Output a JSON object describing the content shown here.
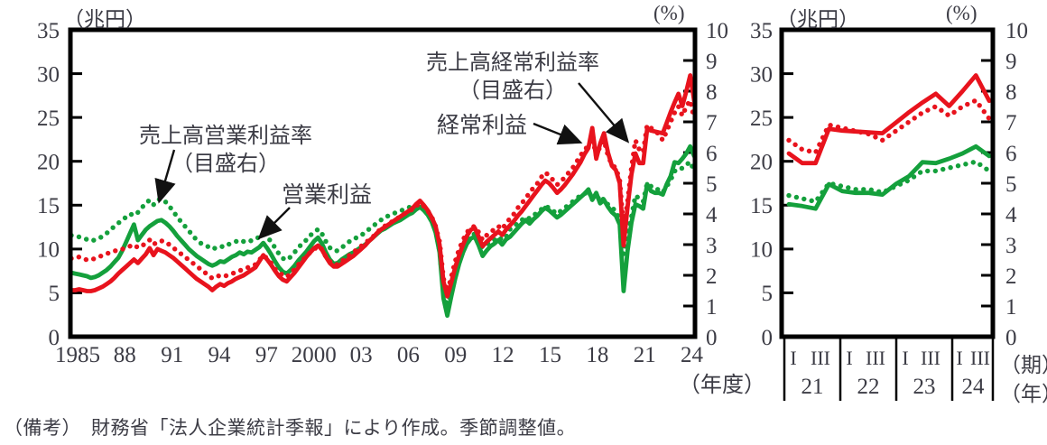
{
  "note": "（備考）　財務省「法人企業統計季報」により作成。季節調整値。",
  "colors": {
    "red": "#e8131d",
    "green": "#14a03c",
    "text": "#3c3c45"
  },
  "chart_data": [
    {
      "type": "line",
      "panel": "annual-main",
      "unit_left": "（兆円）",
      "unit_right": "(%)",
      "xlabel": "（年度）",
      "x_range_fiscal_years": [
        1985,
        2024
      ],
      "x_frequency": "quarterly",
      "ylim_left": [
        0,
        35
      ],
      "yticks_left": [
        0,
        5,
        10,
        15,
        20,
        25,
        30,
        35
      ],
      "ylim_right": [
        0,
        10
      ],
      "yticks_right": [
        0,
        1,
        2,
        3,
        4,
        5,
        6,
        7,
        8,
        9,
        10
      ],
      "x_ticks": [
        {
          "label": "1985",
          "year": 1985
        },
        {
          "label": "88",
          "year": 1988
        },
        {
          "label": "91",
          "year": 1991
        },
        {
          "label": "94",
          "year": 1994
        },
        {
          "label": "97",
          "year": 1997
        },
        {
          "label": "2000",
          "year": 2000
        },
        {
          "label": "03",
          "year": 2003
        },
        {
          "label": "06",
          "year": 2006
        },
        {
          "label": "09",
          "year": 2009
        },
        {
          "label": "12",
          "year": 2012
        },
        {
          "label": "15",
          "year": 2015
        },
        {
          "label": "18",
          "year": 2018
        },
        {
          "label": "21",
          "year": 2021
        },
        {
          "label": "24",
          "year": 2024
        }
      ],
      "annotations": [
        {
          "lines": [
            "売上高営業利益率",
            "（目盛右）"
          ],
          "target": "green dotted series around 1990"
        },
        {
          "lines": [
            "営業利益"
          ],
          "target": "green solid series around 1997"
        },
        {
          "lines": [
            "売上高経常利益率",
            "（目盛右）"
          ],
          "target": "red dotted series around 2021"
        },
        {
          "lines": [
            "経常利益"
          ],
          "target": "red solid series around 2018"
        }
      ],
      "series": [
        {
          "name": "売上高営業利益率（目盛右）",
          "axis": "right",
          "line": "dotted",
          "color": "#14a03c",
          "values": [
            3.3,
            3.27,
            3.25,
            3.2,
            3.17,
            3.12,
            3.15,
            3.2,
            3.27,
            3.37,
            3.47,
            3.6,
            3.7,
            3.8,
            3.9,
            4.0,
            3.95,
            4.05,
            4.2,
            4.35,
            4.45,
            4.3,
            4.45,
            4.5,
            4.4,
            4.25,
            4.1,
            3.9,
            3.75,
            3.6,
            3.45,
            3.3,
            3.15,
            3.05,
            2.98,
            2.93,
            2.85,
            2.9,
            2.95,
            2.92,
            3.0,
            3.05,
            3.1,
            3.15,
            3.1,
            3.15,
            3.12,
            3.18,
            3.25,
            3.35,
            3.25,
            3.1,
            2.9,
            2.7,
            2.55,
            2.5,
            2.6,
            2.75,
            2.9,
            3.05,
            3.15,
            3.3,
            3.4,
            3.5,
            3.35,
            3.1,
            2.9,
            2.8,
            2.8,
            2.9,
            3.0,
            3.1,
            3.15,
            3.25,
            3.3,
            3.4,
            3.5,
            3.6,
            3.7,
            3.8,
            3.85,
            3.95,
            4.0,
            4.05,
            4.1,
            4.15,
            4.2,
            4.25,
            4.3,
            4.35,
            4.25,
            4.1,
            3.9,
            3.5,
            2.8,
            1.5,
            0.95,
            1.55,
            2.1,
            2.6,
            2.95,
            3.15,
            3.3,
            3.35,
            3.1,
            2.9,
            3.0,
            3.1,
            3.15,
            3.25,
            3.15,
            3.25,
            3.5,
            3.6,
            3.7,
            3.8,
            3.9,
            3.85,
            3.95,
            4.05,
            4.15,
            4.25,
            4.2,
            4.1,
            4.0,
            4.1,
            4.2,
            4.3,
            4.4,
            4.5,
            4.6,
            4.65,
            4.75,
            4.5,
            4.65,
            4.4,
            4.5,
            4.3,
            4.2,
            4.1,
            3.8,
            2.7,
            3.4,
            3.9,
            4.6,
            4.5,
            4.4,
            5.0,
            4.9,
            4.8,
            4.8,
            4.7,
            4.9,
            5.1,
            5.4,
            5.4,
            5.5,
            5.6,
            5.7,
            5.4
          ]
        },
        {
          "name": "営業利益",
          "axis": "left",
          "line": "solid",
          "color": "#14a03c",
          "values": [
            7.3,
            7.2,
            7.1,
            7.0,
            6.9,
            6.7,
            6.8,
            7.0,
            7.3,
            7.6,
            8.0,
            8.5,
            9.0,
            9.8,
            10.8,
            11.8,
            12.8,
            11.0,
            11.6,
            12.2,
            12.6,
            12.9,
            13.2,
            13.3,
            13.0,
            12.6,
            12.1,
            11.5,
            11.0,
            10.5,
            10.0,
            9.6,
            9.2,
            8.9,
            8.6,
            8.3,
            8.1,
            8.3,
            8.6,
            8.5,
            8.8,
            9.1,
            9.3,
            9.6,
            9.4,
            9.7,
            9.6,
            9.9,
            10.2,
            10.7,
            10.1,
            9.4,
            8.6,
            7.9,
            7.4,
            7.2,
            7.6,
            8.1,
            8.7,
            9.2,
            9.7,
            10.3,
            10.9,
            11.3,
            10.6,
            9.6,
            8.8,
            8.3,
            8.4,
            8.8,
            9.1,
            9.4,
            9.6,
            9.9,
            10.2,
            10.5,
            10.9,
            11.3,
            11.7,
            12.1,
            12.3,
            12.6,
            12.9,
            13.1,
            13.3,
            13.6,
            13.9,
            14.1,
            14.5,
            14.8,
            14.4,
            13.9,
            13.1,
            11.9,
            9.6,
            4.4,
            2.4,
            4.6,
            6.6,
            8.3,
            9.6,
            10.6,
            11.2,
            11.4,
            10.4,
            9.2,
            9.8,
            10.3,
            10.6,
            11.0,
            10.5,
            11.1,
            11.4,
            11.9,
            12.4,
            12.9,
            13.3,
            12.9,
            13.4,
            13.8,
            14.3,
            14.7,
            14.4,
            14.0,
            13.6,
            13.9,
            14.3,
            14.7,
            15.1,
            15.5,
            15.9,
            16.3,
            16.8,
            15.6,
            16.4,
            15.2,
            15.6,
            14.8,
            14.2,
            13.8,
            12.8,
            5.2,
            9.8,
            13.0,
            15.1,
            14.9,
            14.6,
            17.4,
            16.6,
            16.4,
            16.4,
            16.2,
            17.4,
            18.3,
            19.9,
            19.8,
            20.3,
            20.9,
            21.7,
            20.6
          ]
        },
        {
          "name": "売上高経常利益率（目盛右）",
          "axis": "right",
          "line": "dotted",
          "color": "#e8131d",
          "values": [
            2.55,
            2.55,
            2.6,
            2.55,
            2.5,
            2.5,
            2.55,
            2.6,
            2.65,
            2.7,
            2.75,
            2.8,
            2.8,
            2.85,
            2.9,
            2.95,
            3.0,
            2.9,
            2.95,
            3.05,
            3.15,
            3.0,
            3.1,
            3.12,
            3.1,
            3.0,
            2.9,
            2.8,
            2.7,
            2.6,
            2.5,
            2.4,
            2.3,
            2.2,
            2.1,
            2.0,
            1.9,
            1.95,
            2.0,
            1.97,
            2.0,
            2.05,
            2.1,
            2.15,
            2.2,
            2.25,
            2.3,
            2.35,
            2.5,
            2.65,
            2.55,
            2.4,
            2.2,
            2.1,
            2.0,
            1.95,
            2.05,
            2.2,
            2.35,
            2.5,
            2.6,
            2.75,
            2.85,
            2.95,
            2.85,
            2.6,
            2.45,
            2.35,
            2.35,
            2.45,
            2.55,
            2.65,
            2.75,
            2.85,
            2.95,
            3.05,
            3.15,
            3.25,
            3.4,
            3.5,
            3.6,
            3.7,
            3.75,
            3.85,
            3.9,
            4.0,
            4.05,
            4.15,
            4.25,
            4.35,
            4.25,
            4.1,
            3.9,
            3.6,
            3.1,
            1.9,
            1.45,
            1.95,
            2.45,
            2.85,
            3.15,
            3.4,
            3.55,
            3.6,
            3.4,
            3.15,
            3.3,
            3.4,
            3.5,
            3.6,
            3.5,
            3.7,
            3.85,
            4.0,
            4.2,
            4.35,
            4.5,
            4.7,
            4.85,
            5.0,
            5.2,
            5.35,
            5.25,
            5.1,
            4.95,
            5.05,
            5.2,
            5.35,
            5.5,
            5.7,
            5.9,
            6.1,
            6.2,
            6.5,
            5.9,
            6.2,
            6.4,
            5.9,
            5.6,
            5.5,
            5.1,
            3.5,
            4.4,
            5.5,
            6.4,
            6.1,
            6.0,
            6.9,
            6.8,
            6.7,
            6.6,
            6.4,
            6.7,
            7.0,
            7.3,
            7.5,
            7.2,
            7.5,
            7.7,
            7.1
          ]
        },
        {
          "name": "経常利益",
          "axis": "left",
          "line": "solid",
          "color": "#e8131d",
          "values": [
            5.3,
            5.3,
            5.4,
            5.3,
            5.2,
            5.2,
            5.3,
            5.5,
            5.7,
            6.0,
            6.3,
            6.7,
            7.2,
            7.6,
            8.0,
            8.4,
            8.8,
            8.4,
            8.9,
            9.4,
            10.1,
            9.3,
            10.0,
            9.8,
            9.6,
            9.3,
            9.0,
            8.6,
            8.2,
            7.8,
            7.4,
            7.0,
            6.6,
            6.3,
            6.0,
            5.7,
            5.3,
            5.7,
            6.0,
            5.8,
            6.1,
            6.3,
            6.6,
            6.8,
            7.0,
            7.3,
            7.6,
            7.9,
            8.6,
            9.3,
            8.8,
            8.2,
            7.5,
            6.9,
            6.5,
            6.3,
            6.8,
            7.3,
            7.9,
            8.5,
            9.1,
            9.6,
            10.1,
            10.4,
            9.9,
            9.1,
            8.4,
            8.0,
            8.0,
            8.3,
            8.6,
            8.9,
            9.2,
            9.6,
            10.0,
            10.4,
            10.9,
            11.3,
            11.8,
            12.2,
            12.5,
            12.8,
            13.1,
            13.4,
            13.7,
            14.0,
            14.3,
            14.6,
            15.1,
            15.5,
            15.0,
            14.4,
            13.6,
            12.6,
            10.5,
            6.3,
            4.6,
            6.2,
            7.9,
            9.3,
            10.5,
            11.5,
            12.2,
            12.4,
            11.4,
            10.3,
            10.8,
            11.2,
            11.6,
            12.0,
            11.6,
            12.2,
            12.7,
            13.2,
            13.8,
            14.3,
            14.9,
            15.5,
            16.1,
            16.7,
            17.3,
            17.8,
            17.5,
            17.0,
            16.4,
            16.8,
            17.3,
            17.9,
            18.5,
            19.2,
            19.9,
            20.8,
            21.5,
            23.8,
            20.3,
            22.0,
            23.2,
            21.0,
            19.5,
            19.0,
            17.5,
            10.4,
            14.8,
            18.5,
            20.9,
            19.8,
            19.8,
            23.7,
            23.5,
            23.4,
            23.3,
            23.2,
            24.4,
            25.6,
            26.7,
            27.7,
            26.3,
            28.0,
            29.8,
            26.9
          ]
        }
      ]
    },
    {
      "type": "line",
      "panel": "quarterly-recent",
      "unit_left": "（兆円）",
      "unit_right": "(%)",
      "x_axis_row_labels": {
        "quarter": "（期）",
        "year": "（年）"
      },
      "ylim_left": [
        0,
        35
      ],
      "yticks_left": [
        0,
        5,
        10,
        15,
        20,
        25,
        30,
        35
      ],
      "ylim_right": [
        0,
        10
      ],
      "yticks_right": [
        0,
        1,
        2,
        3,
        4,
        5,
        6,
        7,
        8,
        9,
        10
      ],
      "x_groups": [
        {
          "year": "21",
          "quarters": [
            "I",
            "III"
          ]
        },
        {
          "year": "22",
          "quarters": [
            "I",
            "III"
          ]
        },
        {
          "year": "23",
          "quarters": [
            "I",
            "III"
          ]
        },
        {
          "year": "24",
          "quarters": [
            "I",
            "III"
          ]
        }
      ],
      "series": [
        {
          "name": "売上高営業利益率（目盛右）",
          "axis": "right",
          "line": "dotted",
          "color": "#14a03c",
          "values": [
            4.6,
            4.5,
            4.4,
            5.0,
            4.9,
            4.8,
            4.8,
            4.7,
            4.9,
            5.1,
            5.4,
            5.4,
            5.5,
            5.6,
            5.7,
            5.4
          ]
        },
        {
          "name": "営業利益",
          "axis": "left",
          "line": "solid",
          "color": "#14a03c",
          "values": [
            15.1,
            14.9,
            14.6,
            17.4,
            16.6,
            16.4,
            16.4,
            16.2,
            17.4,
            18.3,
            19.9,
            19.8,
            20.3,
            20.9,
            21.7,
            20.6
          ]
        },
        {
          "name": "売上高経常利益率（目盛右）",
          "axis": "right",
          "line": "dotted",
          "color": "#e8131d",
          "values": [
            6.4,
            6.1,
            6.0,
            6.9,
            6.8,
            6.7,
            6.6,
            6.4,
            6.7,
            7.0,
            7.3,
            7.5,
            7.2,
            7.5,
            7.7,
            7.1
          ]
        },
        {
          "name": "経常利益",
          "axis": "left",
          "line": "solid",
          "color": "#e8131d",
          "values": [
            20.9,
            19.8,
            19.8,
            23.7,
            23.5,
            23.4,
            23.3,
            23.2,
            24.4,
            25.6,
            26.7,
            27.7,
            26.3,
            28.0,
            29.8,
            26.9
          ]
        }
      ]
    }
  ]
}
